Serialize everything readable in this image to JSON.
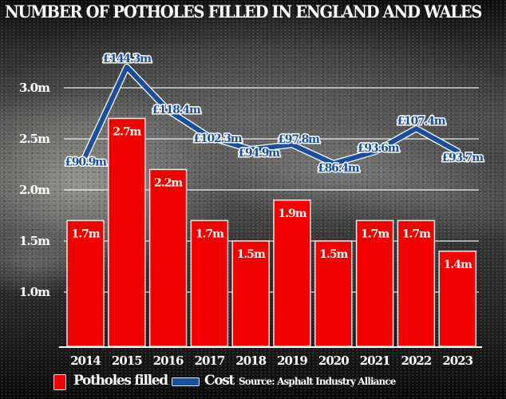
{
  "chart_data": {
    "type": "bar+line",
    "title": "NUMBER OF POTHOLES FILLED IN ENGLAND AND WALES",
    "categories": [
      "2014",
      "2015",
      "2016",
      "2017",
      "2018",
      "2019",
      "2020",
      "2021",
      "2022",
      "2023"
    ],
    "series": [
      {
        "name": "Potholes filled",
        "type": "bar",
        "color": "#f50000",
        "values": [
          1.7,
          2.7,
          2.2,
          1.7,
          1.5,
          1.9,
          1.5,
          1.7,
          1.7,
          1.4
        ],
        "labels": [
          "1.7m",
          "2.7m",
          "2.2m",
          "1.7m",
          "1.5m",
          "1.9m",
          "1.5m",
          "1.7m",
          "1.7m",
          "1.4m"
        ]
      },
      {
        "name": "Cost",
        "type": "line",
        "color": "#1a4f9c",
        "values": [
          90.9,
          144.3,
          118.4,
          102.3,
          94.9,
          97.8,
          86.4,
          93.6,
          107.4,
          93.7
        ],
        "labels": [
          "£90.9m",
          "£144.3m",
          "£118.4m",
          "£102.3m",
          "£94.9m",
          "£97.8m",
          "£86.4m",
          "£93.6m",
          "£107.4m",
          "£93.7m"
        ]
      }
    ],
    "y_ticks": [
      {
        "value": 3.0,
        "label": "3.0m"
      },
      {
        "value": 2.5,
        "label": "2.5m"
      },
      {
        "value": 2.0,
        "label": "2.0m"
      },
      {
        "value": 1.5,
        "label": "1.5m"
      },
      {
        "value": 1.0,
        "label": "1.0m"
      }
    ],
    "ylim": [
      0.45,
      3.2
    ],
    "cost_ylim": [
      60,
      160
    ],
    "grid": true,
    "legend_position": "bottom",
    "source": "Source: Asphalt Industry Alliance"
  },
  "legend": {
    "potholes_label": "Potholes filled",
    "cost_label": "Cost",
    "source_label": "Source: Asphalt Industry Alliance"
  }
}
